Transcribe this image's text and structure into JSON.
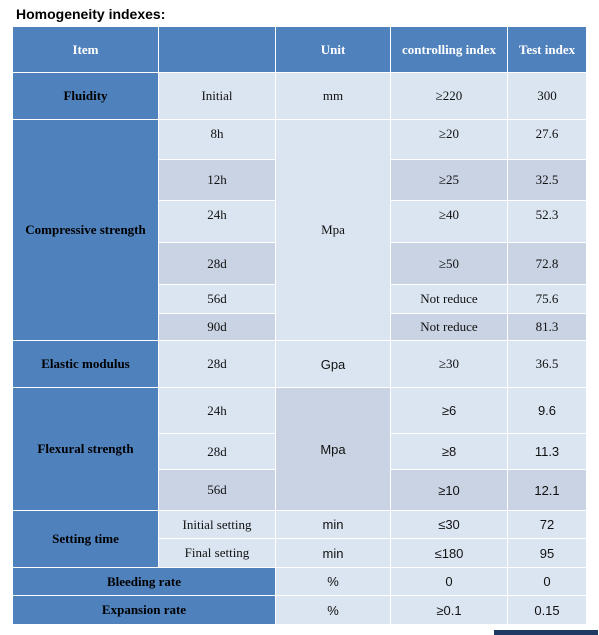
{
  "heading": "Homogeneity indexes:",
  "columns": {
    "item": "Item",
    "sub": "",
    "unit": "Unit",
    "controlling": "controlling index",
    "test": "Test index"
  },
  "rows": {
    "fluidity": {
      "label": "Fluidity",
      "sub": "Initial",
      "unit": "mm",
      "control": "≥220",
      "test": "300"
    },
    "compressive": {
      "label": "Compressive strength",
      "unit": "Mpa",
      "items": [
        {
          "sub": "8h",
          "control": "≥20",
          "test": "27.6"
        },
        {
          "sub": "12h",
          "control": "≥25",
          "test": "32.5"
        },
        {
          "sub": "24h",
          "control": "≥40",
          "test": "52.3"
        },
        {
          "sub": "28d",
          "control": "≥50",
          "test": "72.8"
        },
        {
          "sub": "56d",
          "control": "Not reduce",
          "test": "75.6"
        },
        {
          "sub": "90d",
          "control": "Not reduce",
          "test": "81.3"
        }
      ]
    },
    "elastic": {
      "label": "Elastic modulus",
      "sub": "28d",
      "unit": "Gpa",
      "control": "≥30",
      "test": "36.5"
    },
    "flexural": {
      "label": "Flexural strength",
      "unit": "Mpa",
      "items": [
        {
          "sub": "24h",
          "control": "≥6",
          "test": "9.6"
        },
        {
          "sub": "28d",
          "control": "≥8",
          "test": "11.3"
        },
        {
          "sub": "56d",
          "control": "≥10",
          "test": "12.1"
        }
      ]
    },
    "setting": {
      "label": "Setting time",
      "items": [
        {
          "sub": "Initial setting",
          "unit": "min",
          "control": "≤30",
          "test": "72"
        },
        {
          "sub": "Final setting",
          "unit": "min",
          "control": "≤180",
          "test": "95"
        }
      ]
    },
    "bleeding": {
      "label": "Bleeding rate",
      "unit": "%",
      "control": "0",
      "test": "0"
    },
    "expansion": {
      "label": "Expansion rate",
      "unit": "%",
      "control": "≥0.1",
      "test": "0.15"
    }
  }
}
